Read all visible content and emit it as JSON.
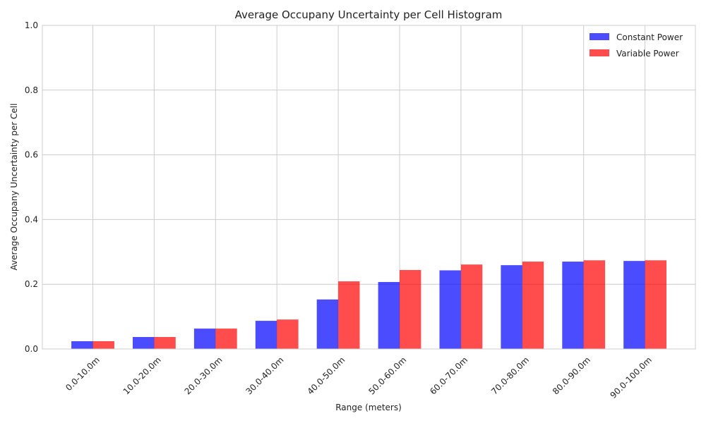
{
  "chart_data": {
    "type": "bar",
    "title": "Average Occupany Uncertainty per Cell Histogram",
    "xlabel": "Range (meters)",
    "ylabel": "Average Occupany Uncertainty per Cell",
    "ylim": [
      0,
      1.0
    ],
    "yticks": [
      "0.0",
      "0.2",
      "0.4",
      "0.6",
      "0.8",
      "1.0"
    ],
    "categories": [
      "0.0-10.0m",
      "10.0-20.0m",
      "20.0-30.0m",
      "30.0-40.0m",
      "40.0-50.0m",
      "50.0-60.0m",
      "60.0-70.0m",
      "70.0-80.0m",
      "80.0-90.0m",
      "90.0-100.0m"
    ],
    "series": [
      {
        "name": "Constant Power",
        "color": "#0000ff",
        "values": [
          0.024,
          0.037,
          0.063,
          0.087,
          0.153,
          0.207,
          0.243,
          0.259,
          0.27,
          0.272
        ]
      },
      {
        "name": "Variable Power",
        "color": "#ff0000",
        "values": [
          0.024,
          0.037,
          0.063,
          0.091,
          0.209,
          0.244,
          0.261,
          0.27,
          0.274,
          0.274
        ]
      }
    ],
    "grid": true,
    "legend_position": "top-right"
  }
}
